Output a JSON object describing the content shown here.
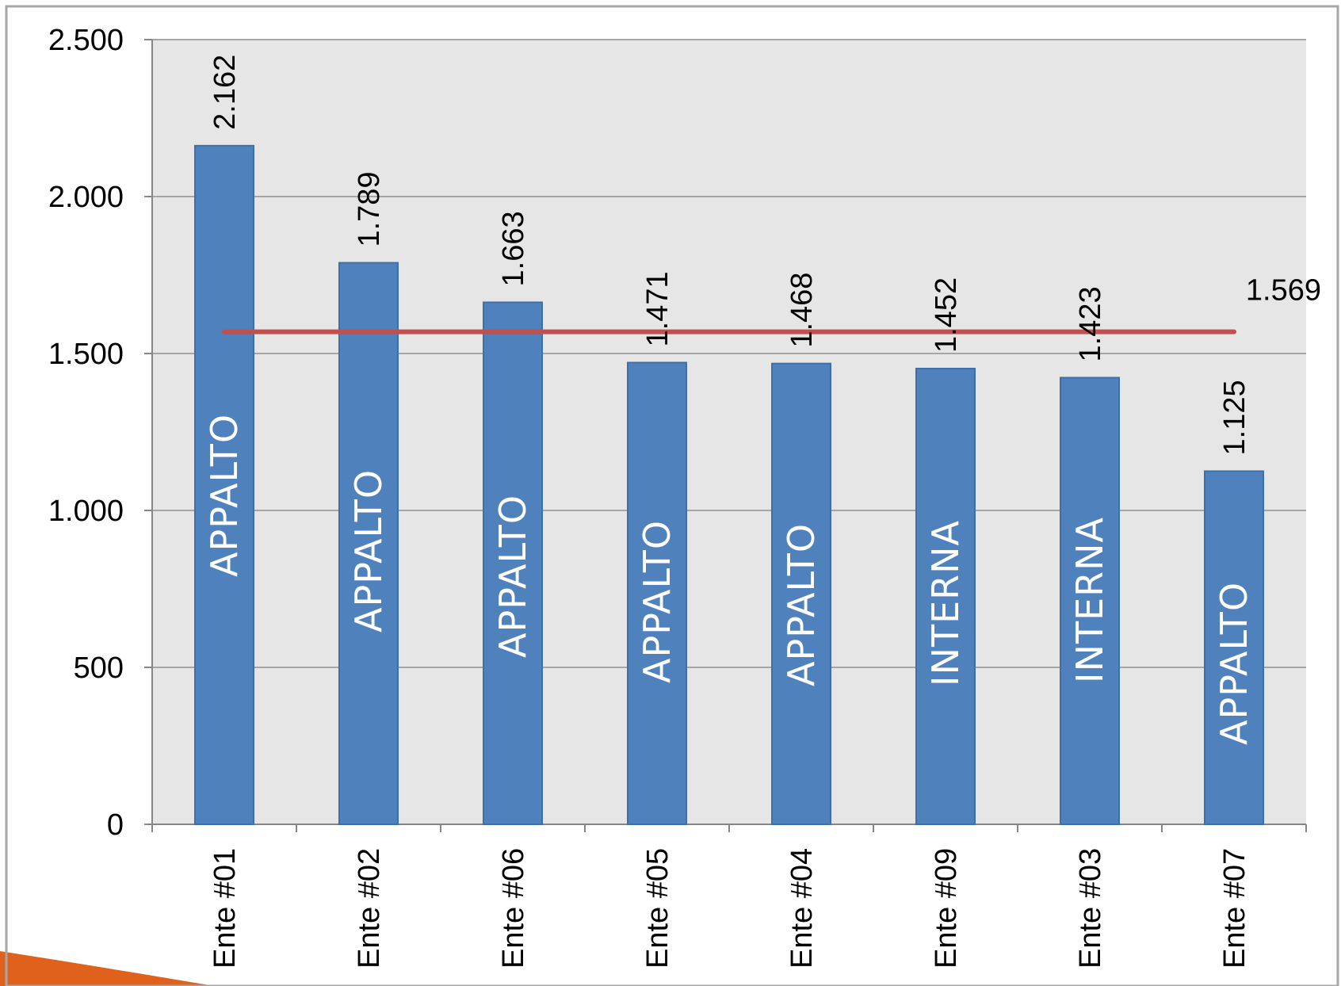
{
  "chart_data": {
    "type": "bar",
    "categories": [
      "Ente #01",
      "Ente #02",
      "Ente #06",
      "Ente #05",
      "Ente #04",
      "Ente #09",
      "Ente #03",
      "Ente #07"
    ],
    "values": [
      2162,
      1789,
      1663,
      1471,
      1468,
      1452,
      1423,
      1125
    ],
    "value_labels": [
      "2.162",
      "1.789",
      "1.663",
      "1.471",
      "1.468",
      "1.452",
      "1.423",
      "1.125"
    ],
    "bar_categories": [
      "APPALTO",
      "APPALTO",
      "APPALTO",
      "APPALTO",
      "APPALTO",
      "INTERNA",
      "INTERNA",
      "APPALTO"
    ],
    "average": {
      "value": 1569,
      "label": "1.569"
    },
    "ylim": [
      0,
      2500
    ],
    "yticks": [
      0,
      500,
      1000,
      1500,
      2000,
      2500
    ],
    "ytick_labels": [
      "0",
      "500",
      "1.000",
      "1.500",
      "2.000",
      "2.500"
    ],
    "grid": true,
    "colors": {
      "bar": "#4f81bd",
      "average_line": "#c0504d",
      "plot_bg": "#e6e6e6"
    },
    "title": "",
    "xlabel": "",
    "ylabel": ""
  }
}
